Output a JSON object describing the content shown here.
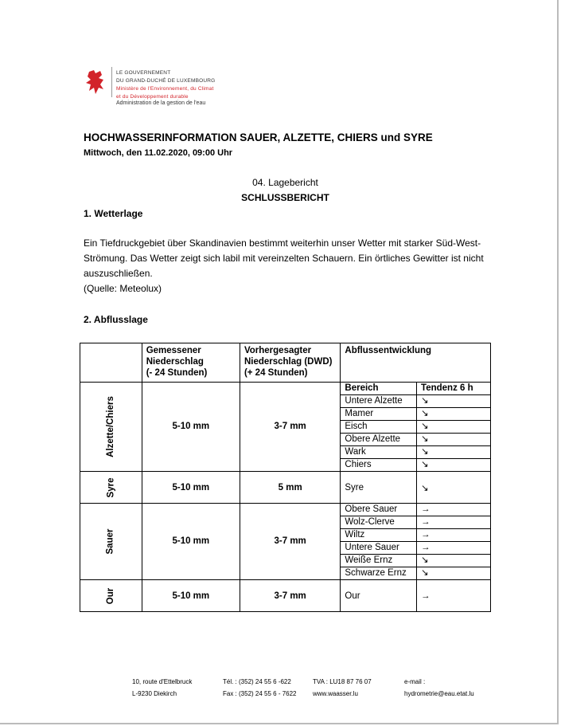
{
  "header": {
    "logo_lines": [
      "LE GOUVERNEMENT",
      "DU GRAND-DUCHÉ DE LUXEMBOURG"
    ],
    "ministry_lines": [
      "Ministère de l'Environnement, du Climat",
      "et du Développement durable"
    ],
    "administration": "Administration de la gestion de l'eau",
    "brand_color": "#d2232a"
  },
  "title": "HOCHWASSERINFORMATION SAUER, ALZETTE, CHIERS und SYRE",
  "date": "Mittwoch, den 11.02.2020, 09:00 Uhr",
  "report_number": "04. Lagebericht",
  "report_type": "SCHLUSSBERICHT",
  "sections": {
    "weather": {
      "heading": "1.   Wetterlage",
      "lines": [
        "Ein Tiefdruckgebiet über Skandinavien bestimmt weiterhin unser Wetter mit starker Süd-West-",
        "Strömung. Das Wetter zeigt sich labil mit vereinzelten Schauern. Ein örtliches Gewitter ist nicht",
        "auszuschließen.",
        "(Quelle: Meteolux)"
      ]
    },
    "runoff": {
      "heading": "2.   Abflusslage"
    }
  },
  "table": {
    "headers": {
      "measured": [
        "Gemessener",
        "Niederschlag",
        "(- 24 Stunden)"
      ],
      "forecast": [
        "Vorhergesagter",
        "Niederschlag (DWD)",
        "(+ 24 Stunden)"
      ],
      "development": "Abflussentwicklung",
      "area": "Bereich",
      "trend": "Tendenz 6 h"
    },
    "groups": [
      {
        "name": "Alzette/Chiers",
        "measured": "5-10 mm",
        "forecast": "3-7 mm",
        "rows": [
          {
            "area": "Untere Alzette",
            "trend": "↘"
          },
          {
            "area": "Mamer",
            "trend": "↘"
          },
          {
            "area": "Eisch",
            "trend": "↘"
          },
          {
            "area": "Obere Alzette",
            "trend": "↘"
          },
          {
            "area": "Wark",
            "trend": "↘"
          },
          {
            "area": "Chiers",
            "trend": "↘"
          }
        ]
      },
      {
        "name": "Syre",
        "measured": "5-10  mm",
        "forecast": "5 mm",
        "rows": [
          {
            "area": "Syre",
            "trend": "↘"
          }
        ]
      },
      {
        "name": "Sauer",
        "measured": "5-10 mm",
        "forecast": "3-7 mm",
        "rows": [
          {
            "area": "Obere Sauer",
            "trend": "→"
          },
          {
            "area": "Wolz-Clerve",
            "trend": "→"
          },
          {
            "area": "Wiltz",
            "trend": "→"
          },
          {
            "area": "Untere Sauer",
            "trend": "→"
          },
          {
            "area": "Weiße Ernz",
            "trend": "↘"
          },
          {
            "area": "Schwarze Ernz",
            "trend": "↘"
          }
        ]
      },
      {
        "name": "Our",
        "measured": "5-10 mm",
        "forecast": "3-7 mm",
        "rows": [
          {
            "area": "Our",
            "trend": "→"
          }
        ]
      }
    ]
  },
  "footer": {
    "address": [
      "10, route d'Ettelbruck",
      "L-9230 Diekirch"
    ],
    "phone": [
      "Tél. : (352) 24 55 6 -622",
      "Fax : (352) 24 55 6 - 7622"
    ],
    "vat_web": [
      "TVA : LU18 87 76 07",
      "www.waasser.lu"
    ],
    "email": [
      "e-mail :",
      "hydrometrie@eau.etat.lu"
    ]
  }
}
